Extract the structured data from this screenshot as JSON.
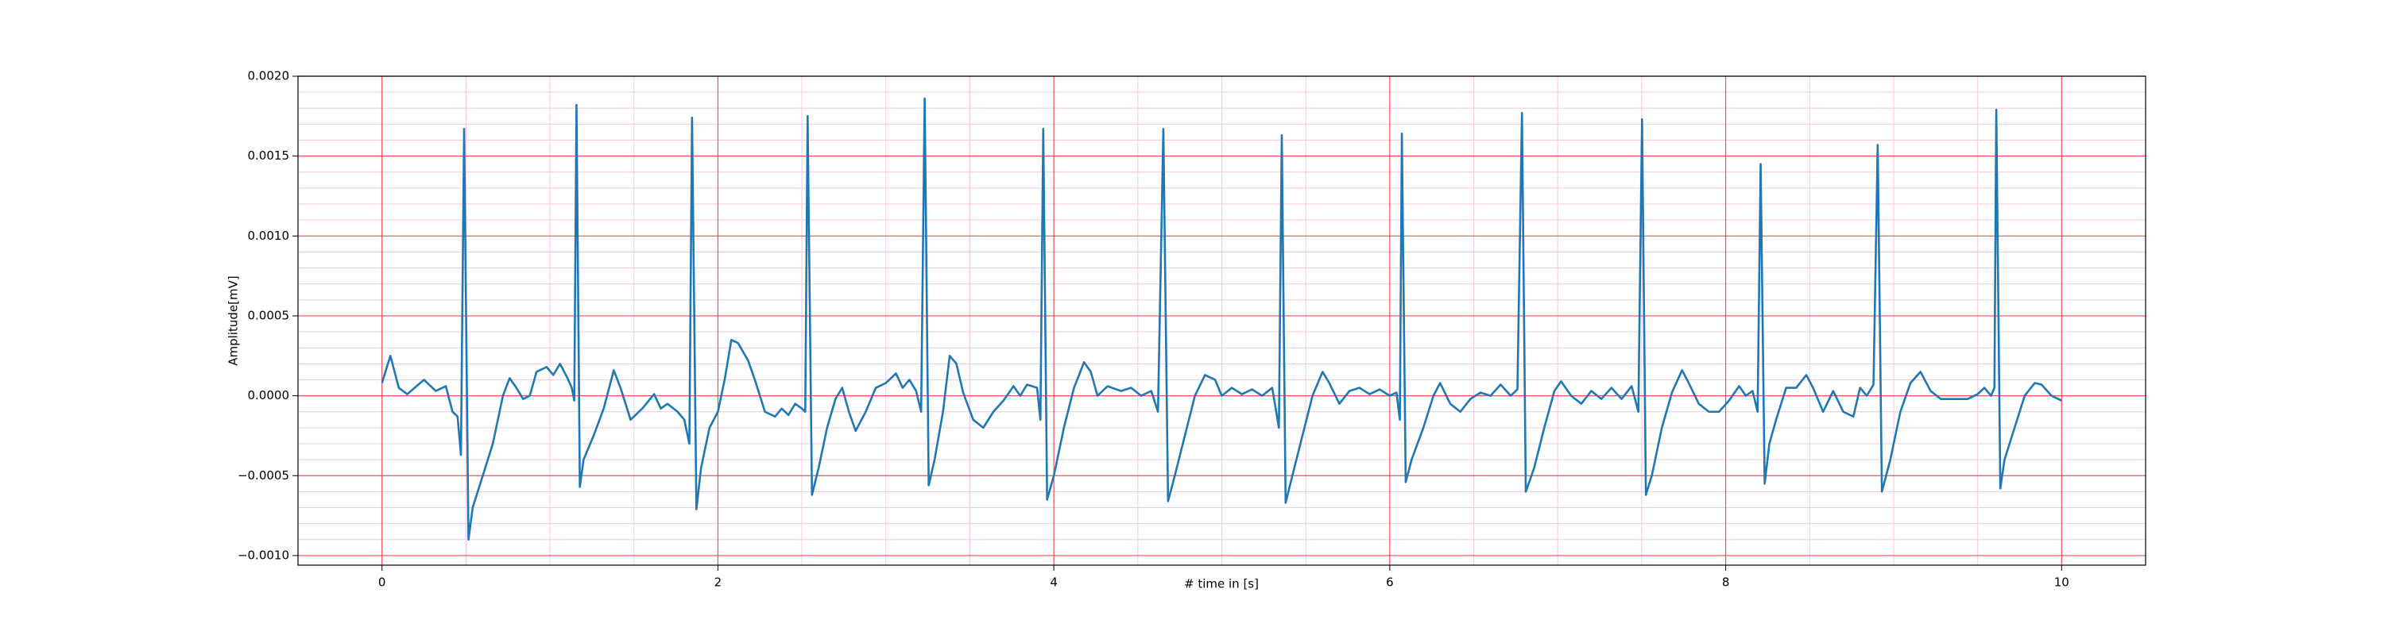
{
  "chart_data": {
    "type": "line",
    "xlabel": "# time in [s]",
    "ylabel": "Amplitude[mV]",
    "xlim": [
      -0.5,
      10.5
    ],
    "ylim": [
      -0.00106,
      0.002
    ],
    "xticks": [
      0,
      2,
      4,
      6,
      8,
      10
    ],
    "yticks": [
      {
        "value": -0.001,
        "label": "−0.0010"
      },
      {
        "value": -0.0005,
        "label": "−0.0005"
      },
      {
        "value": 0,
        "label": "0.0000"
      },
      {
        "value": 0.0005,
        "label": "0.0005"
      },
      {
        "value": 0.001,
        "label": "0.0010"
      },
      {
        "value": 0.0015,
        "label": "0.0015"
      },
      {
        "value": 0.002,
        "label": "0.0020"
      }
    ],
    "xminorticks": [
      -0.5,
      0.5,
      1,
      1.5,
      2.5,
      3,
      3.5,
      4.5,
      5,
      5.5,
      6.5,
      7,
      7.5,
      8.5,
      9,
      9.5,
      10.5
    ],
    "yminorticks": [
      -0.0009,
      -0.0008,
      -0.0007,
      -0.0006,
      -0.0004,
      -0.0003,
      -0.0002,
      -0.0001,
      0.0001,
      0.0002,
      0.0003,
      0.0004,
      0.0006,
      0.0007,
      0.0008,
      0.0009,
      0.0011,
      0.0012,
      0.0013,
      0.0014,
      0.0016,
      0.0017,
      0.0018,
      0.0019
    ],
    "grid": true,
    "grid_color": "#e8262d",
    "minor_grid_color": "#f7c6df",
    "x": [
      0.0,
      0.05,
      0.1,
      0.15,
      0.25,
      0.32,
      0.38,
      0.42,
      0.45,
      0.47,
      0.489,
      0.515,
      0.54,
      0.6,
      0.66,
      0.72,
      0.76,
      0.8,
      0.84,
      0.88,
      0.92,
      0.98,
      1.02,
      1.06,
      1.1,
      1.13,
      1.145,
      1.158,
      1.178,
      1.2,
      1.26,
      1.32,
      1.38,
      1.42,
      1.48,
      1.55,
      1.62,
      1.66,
      1.7,
      1.76,
      1.8,
      1.83,
      1.846,
      1.872,
      1.9,
      1.95,
      2.0,
      2.04,
      2.08,
      2.12,
      2.18,
      2.22,
      2.28,
      2.34,
      2.38,
      2.42,
      2.46,
      2.5,
      2.52,
      2.534,
      2.56,
      2.6,
      2.65,
      2.7,
      2.74,
      2.78,
      2.82,
      2.88,
      2.94,
      3.0,
      3.06,
      3.1,
      3.14,
      3.18,
      3.21,
      3.231,
      3.255,
      3.29,
      3.34,
      3.38,
      3.42,
      3.46,
      3.52,
      3.58,
      3.64,
      3.7,
      3.76,
      3.8,
      3.84,
      3.9,
      3.92,
      3.937,
      3.96,
      4.0,
      4.06,
      4.12,
      4.18,
      4.22,
      4.26,
      4.32,
      4.4,
      4.46,
      4.52,
      4.58,
      4.62,
      4.652,
      4.68,
      4.72,
      4.78,
      4.84,
      4.9,
      4.96,
      5.0,
      5.06,
      5.12,
      5.18,
      5.24,
      5.3,
      5.34,
      5.357,
      5.38,
      5.42,
      5.48,
      5.54,
      5.6,
      5.64,
      5.7,
      5.76,
      5.82,
      5.88,
      5.94,
      6.0,
      6.04,
      6.06,
      6.072,
      6.095,
      6.13,
      6.2,
      6.26,
      6.3,
      6.36,
      6.42,
      6.48,
      6.54,
      6.6,
      6.66,
      6.72,
      6.76,
      6.787,
      6.81,
      6.86,
      6.92,
      6.98,
      7.02,
      7.08,
      7.14,
      7.2,
      7.26,
      7.32,
      7.38,
      7.44,
      7.48,
      7.502,
      7.525,
      7.56,
      7.62,
      7.68,
      7.74,
      7.78,
      7.84,
      7.9,
      7.96,
      8.02,
      8.08,
      8.12,
      8.16,
      8.19,
      8.208,
      8.232,
      8.26,
      8.3,
      8.36,
      8.42,
      8.48,
      8.52,
      8.58,
      8.64,
      8.7,
      8.76,
      8.8,
      8.84,
      8.88,
      8.905,
      8.93,
      8.98,
      9.04,
      9.1,
      9.16,
      9.22,
      9.28,
      9.36,
      9.44,
      9.5,
      9.54,
      9.58,
      9.6,
      9.611,
      9.635,
      9.66,
      9.72,
      9.78,
      9.84,
      9.88,
      9.94,
      10.0
    ],
    "series": [
      {
        "color": "#1f77b4",
        "values": [
          8e-05,
          0.00025,
          5e-05,
          1e-05,
          0.0001,
          3e-05,
          6e-05,
          -0.0001,
          -0.00013,
          -0.00037,
          0.00167,
          -0.0009,
          -0.0007,
          -0.0005,
          -0.0003,
          0.0,
          0.00011,
          5e-05,
          -2e-05,
          0.0,
          0.00015,
          0.00018,
          0.00013,
          0.0002,
          0.00012,
          5e-05,
          -3e-05,
          0.00182,
          -0.00057,
          -0.0004,
          -0.00025,
          -8e-05,
          0.00016,
          5e-05,
          -0.00015,
          -8e-05,
          1e-05,
          -8e-05,
          -5e-05,
          -0.0001,
          -0.00015,
          -0.0003,
          0.00174,
          -0.00071,
          -0.00045,
          -0.0002,
          -0.0001,
          0.0001,
          0.00035,
          0.00033,
          0.00022,
          0.0001,
          -0.0001,
          -0.00013,
          -8e-05,
          -0.00012,
          -5e-05,
          -8e-05,
          -0.0001,
          0.00175,
          -0.00062,
          -0.00045,
          -0.0002,
          -2e-05,
          5e-05,
          -0.0001,
          -0.00022,
          -0.0001,
          5e-05,
          8e-05,
          0.00014,
          5e-05,
          0.0001,
          3e-05,
          -0.0001,
          0.00186,
          -0.00056,
          -0.0004,
          -0.0001,
          0.00025,
          0.0002,
          2e-05,
          -0.00015,
          -0.0002,
          -0.0001,
          -3e-05,
          6e-05,
          0.0,
          7e-05,
          5e-05,
          -0.00015,
          0.00167,
          -0.00065,
          -0.0005,
          -0.0002,
          5e-05,
          0.00021,
          0.00015,
          0.0,
          6e-05,
          3e-05,
          5e-05,
          0.0,
          3e-05,
          -0.0001,
          0.00167,
          -0.00066,
          -0.0005,
          -0.00025,
          0.0,
          0.00013,
          0.0001,
          0.0,
          5e-05,
          1e-05,
          4e-05,
          0.0,
          5e-05,
          -0.0002,
          0.00163,
          -0.00067,
          -0.0005,
          -0.00025,
          0.0,
          0.00015,
          8e-05,
          -5e-05,
          3e-05,
          5e-05,
          1e-05,
          4e-05,
          0.0,
          2e-05,
          -0.00015,
          0.00164,
          -0.00054,
          -0.0004,
          -0.0002,
          0.0,
          8e-05,
          -5e-05,
          -0.0001,
          -2e-05,
          2e-05,
          0.0,
          7e-05,
          0.0,
          4e-05,
          0.00177,
          -0.0006,
          -0.00045,
          -0.0002,
          3e-05,
          9e-05,
          0.0,
          -5e-05,
          3e-05,
          -2e-05,
          5e-05,
          -2e-05,
          6e-05,
          -0.0001,
          0.00173,
          -0.00062,
          -0.0005,
          -0.0002,
          2e-05,
          0.00016,
          8e-05,
          -5e-05,
          -0.0001,
          -0.0001,
          -3e-05,
          6e-05,
          0.0,
          3e-05,
          -0.0001,
          0.00145,
          -0.00055,
          -0.0003,
          -0.00015,
          5e-05,
          5e-05,
          0.00013,
          5e-05,
          -0.0001,
          3e-05,
          -0.0001,
          -0.00013,
          5e-05,
          0.0,
          7e-05,
          0.00157,
          -0.0006,
          -0.0004,
          -0.0001,
          8e-05,
          0.00015,
          3e-05,
          -2e-05,
          -2e-05,
          -2e-05,
          1e-05,
          5e-05,
          0.0,
          5e-05,
          0.00179,
          -0.00058,
          -0.0004,
          -0.0002,
          0.0,
          8e-05,
          7e-05,
          0.0,
          -3e-05
        ]
      }
    ]
  }
}
